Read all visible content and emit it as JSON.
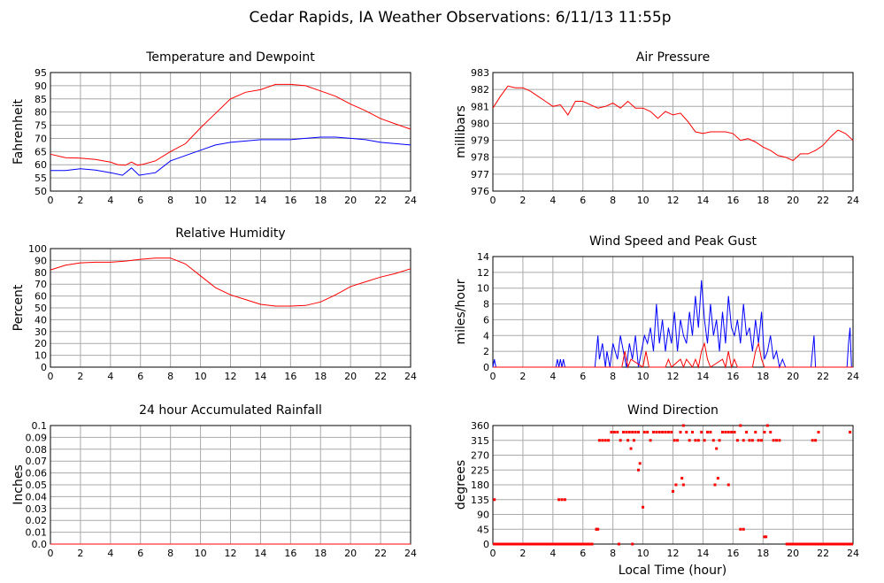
{
  "page": {
    "title": "Cedar Rapids, IA Weather Observations: 6/11/13 11:55p",
    "xlabel_bottom": "Local Time (hour)"
  },
  "colors": {
    "red": "#ff0000",
    "blue": "#0000ff",
    "grid": "#a9a9a9"
  },
  "chart_data": [
    {
      "id": "temp",
      "type": "line",
      "title": "Temperature and Dewpoint",
      "ylabel": "Fahrenheit",
      "xlim": [
        0,
        24
      ],
      "ylim": [
        50,
        95
      ],
      "xticks": [
        0,
        2,
        4,
        6,
        8,
        10,
        12,
        14,
        16,
        18,
        20,
        22,
        24
      ],
      "yticks": [
        50,
        55,
        60,
        65,
        70,
        75,
        80,
        85,
        90,
        95
      ],
      "series": [
        {
          "color": "#ff0000",
          "x": [
            0,
            1,
            2,
            3,
            4,
            4.5,
            5,
            5.4,
            5.8,
            6.2,
            7,
            8,
            9,
            10,
            11,
            12,
            13,
            14,
            15,
            16,
            17,
            18,
            19,
            20,
            21,
            22,
            23,
            24
          ],
          "y": [
            64,
            62.7,
            62.5,
            62,
            61,
            60,
            59.8,
            61,
            59.8,
            60.2,
            61.5,
            65,
            68,
            74,
            79.5,
            85,
            87.5,
            88.5,
            90.5,
            90.5,
            90,
            88,
            86,
            83,
            80.5,
            77.5,
            75.5,
            73.5
          ]
        },
        {
          "color": "#0000ff",
          "x": [
            0,
            1,
            2,
            3,
            4,
            4.8,
            5.4,
            5.9,
            7,
            8,
            9,
            10,
            11,
            12,
            13,
            14,
            15,
            16,
            17,
            18,
            19,
            20,
            21,
            22,
            23,
            24
          ],
          "y": [
            57.8,
            57.8,
            58.5,
            58,
            57,
            56,
            58.8,
            56,
            57,
            61.5,
            63.5,
            65.5,
            67.5,
            68.5,
            69,
            69.5,
            69.5,
            69.5,
            70,
            70.5,
            70.5,
            70,
            69.5,
            68.5,
            68,
            67.5
          ]
        }
      ]
    },
    {
      "id": "pressure",
      "type": "line",
      "title": "Air Pressure",
      "ylabel": "millibars",
      "xlim": [
        0,
        24
      ],
      "ylim": [
        976,
        983
      ],
      "xticks": [
        0,
        2,
        4,
        6,
        8,
        10,
        12,
        14,
        16,
        18,
        20,
        22,
        24
      ],
      "yticks": [
        976,
        977,
        978,
        979,
        980,
        981,
        982,
        983
      ],
      "series": [
        {
          "color": "#ff0000",
          "x": [
            0,
            0.5,
            1,
            1.5,
            2,
            2.5,
            3,
            3.5,
            4,
            4.5,
            5,
            5.5,
            6,
            6.5,
            7,
            7.5,
            8,
            8.5,
            9,
            9.5,
            10,
            10.5,
            11,
            11.5,
            12,
            12.5,
            13,
            13.5,
            14,
            14.5,
            15,
            15.5,
            16,
            16.5,
            17,
            17.5,
            18,
            18.5,
            19,
            19.5,
            20,
            20.5,
            21,
            21.5,
            22,
            22.5,
            23,
            23.5,
            24
          ],
          "y": [
            980.9,
            981.6,
            982.2,
            982.1,
            982.1,
            981.9,
            981.6,
            981.3,
            981.0,
            981.1,
            980.5,
            981.3,
            981.3,
            981.1,
            980.9,
            981.0,
            981.2,
            980.9,
            981.3,
            980.9,
            980.9,
            980.7,
            980.3,
            980.7,
            980.5,
            980.6,
            980.1,
            979.5,
            979.4,
            979.5,
            979.5,
            979.5,
            979.4,
            979.0,
            979.1,
            978.9,
            978.6,
            978.4,
            978.1,
            978.0,
            977.8,
            978.2,
            978.2,
            978.4,
            978.7,
            979.2,
            979.6,
            979.4,
            979.0
          ]
        }
      ]
    },
    {
      "id": "humidity",
      "type": "line",
      "title": "Relative Humidity",
      "ylabel": "Percent",
      "xlim": [
        0,
        24
      ],
      "ylim": [
        0,
        100
      ],
      "xticks": [
        0,
        2,
        4,
        6,
        8,
        10,
        12,
        14,
        16,
        18,
        20,
        22,
        24
      ],
      "yticks": [
        0,
        10,
        20,
        30,
        40,
        50,
        60,
        70,
        80,
        90,
        100
      ],
      "series": [
        {
          "color": "#ff0000",
          "x": [
            0,
            1,
            2,
            3,
            4,
            5,
            6,
            7,
            8,
            9,
            10,
            11,
            12,
            13,
            14,
            15,
            16,
            17,
            18,
            19,
            20,
            21,
            22,
            23,
            24
          ],
          "y": [
            82,
            86,
            88,
            88.5,
            88.5,
            89.5,
            91,
            92,
            92,
            87,
            77,
            67,
            61,
            57,
            53,
            51.5,
            51.5,
            52,
            55,
            61,
            68,
            72,
            76,
            79,
            83
          ]
        }
      ]
    },
    {
      "id": "wind",
      "type": "line",
      "title": "Wind Speed and Peak Gust",
      "ylabel": "miles/hour",
      "xlim": [
        0,
        24
      ],
      "ylim": [
        0,
        14
      ],
      "xticks": [
        0,
        2,
        4,
        6,
        8,
        10,
        12,
        14,
        16,
        18,
        20,
        22,
        24
      ],
      "yticks": [
        0,
        2,
        4,
        6,
        8,
        10,
        12,
        14
      ],
      "series": [
        {
          "color": "#0000ff",
          "x": [
            0,
            0.1,
            0.2,
            0.3,
            4.2,
            4.3,
            4.4,
            4.5,
            4.6,
            4.7,
            4.8,
            6.8,
            6.9,
            7.0,
            7.1,
            7.3,
            7.5,
            7.6,
            7.8,
            8.0,
            8.3,
            8.5,
            8.7,
            8.9,
            9.1,
            9.3,
            9.5,
            9.7,
            9.9,
            10.1,
            10.3,
            10.5,
            10.7,
            10.9,
            11.1,
            11.3,
            11.5,
            11.7,
            11.9,
            12.1,
            12.3,
            12.5,
            12.7,
            12.9,
            13.1,
            13.3,
            13.5,
            13.7,
            13.9,
            14.1,
            14.3,
            14.5,
            14.7,
            14.9,
            15.1,
            15.3,
            15.5,
            15.7,
            15.9,
            16.1,
            16.3,
            16.5,
            16.7,
            16.9,
            17.1,
            17.3,
            17.5,
            17.7,
            17.9,
            18.1,
            18.3,
            18.5,
            18.7,
            18.9,
            19.1,
            19.3,
            19.5,
            21.2,
            21.3,
            21.4,
            21.5,
            21.6,
            23.6,
            23.7,
            23.8,
            23.9,
            24.0
          ],
          "y": [
            0,
            1,
            0,
            0,
            0,
            1,
            0,
            1,
            0,
            1,
            0,
            0,
            2,
            4,
            1,
            3,
            0,
            2,
            0,
            3,
            1,
            4,
            2,
            0,
            3,
            1,
            4,
            0,
            2,
            4,
            3,
            5,
            2,
            8,
            3,
            6,
            2,
            5,
            3,
            7,
            2,
            6,
            4,
            3,
            7,
            4,
            9,
            5,
            11,
            6,
            3,
            8,
            4,
            6,
            2,
            7,
            3,
            9,
            5,
            4,
            6,
            3,
            8,
            4,
            5,
            2,
            6,
            3,
            7,
            1,
            2,
            4,
            1,
            2,
            0,
            1,
            0,
            0,
            2,
            4,
            0,
            0,
            0,
            3,
            5,
            0,
            0
          ]
        },
        {
          "color": "#ff0000",
          "x": [
            0,
            8.6,
            8.8,
            9.0,
            9.2,
            10.0,
            10.2,
            10.4,
            11.5,
            11.7,
            11.9,
            12.5,
            12.7,
            12.9,
            13.3,
            13.5,
            13.7,
            13.9,
            14.1,
            14.3,
            14.5,
            15.3,
            15.5,
            15.7,
            15.9,
            16.1,
            16.3,
            17.3,
            17.5,
            17.7,
            17.9,
            18.1,
            24
          ],
          "y": [
            0,
            0,
            2,
            0,
            1,
            0,
            2,
            0,
            0,
            1,
            0,
            1,
            0,
            1,
            0,
            1,
            0,
            2,
            3,
            1,
            0,
            1,
            0,
            2,
            0,
            1,
            0,
            0,
            2,
            3,
            1,
            0,
            0
          ]
        }
      ]
    },
    {
      "id": "rain",
      "type": "line",
      "title": "24 hour Accumulated Rainfall",
      "ylabel": "Inches",
      "xlim": [
        0,
        24
      ],
      "ylim": [
        0,
        0.1
      ],
      "xticks": [
        0,
        2,
        4,
        6,
        8,
        10,
        12,
        14,
        16,
        18,
        20,
        22,
        24
      ],
      "yticks": [
        0.0,
        0.01,
        0.02,
        0.03,
        0.04,
        0.05,
        0.06,
        0.07,
        0.08,
        0.09,
        0.1
      ],
      "ytick_labels": [
        "0.0",
        "0.01",
        "0.02",
        "0.03",
        "0.04",
        "0.05",
        "0.06",
        "0.07",
        "0.08",
        "0.09",
        "0.1"
      ],
      "series": [
        {
          "color": "#ff0000",
          "x": [
            0,
            24
          ],
          "y": [
            0,
            0
          ]
        }
      ]
    },
    {
      "id": "winddir",
      "type": "scatter",
      "title": "Wind Direction",
      "ylabel": "degrees",
      "xlim": [
        0,
        24
      ],
      "ylim": [
        0,
        360
      ],
      "xticks": [
        0,
        2,
        4,
        6,
        8,
        10,
        12,
        14,
        16,
        18,
        20,
        22,
        24
      ],
      "yticks": [
        0,
        45,
        90,
        135,
        180,
        225,
        270,
        315,
        360
      ],
      "series": [
        {
          "color": "#ff0000",
          "x": [
            0.1,
            4.4,
            4.6,
            4.8,
            6.9,
            7.1,
            7.3,
            7.5,
            7.7,
            7.9,
            8.1,
            8.3,
            8.5,
            8.7,
            8.9,
            9.1,
            9.3,
            9.5,
            9.7,
            9.0,
            9.2,
            9.4,
            10.1,
            10.3,
            10.5,
            10.7,
            10.9,
            11.1,
            11.3,
            11.5,
            11.7,
            11.9,
            12.1,
            12.3,
            12.5,
            12.7,
            12.9,
            13.1,
            13.3,
            13.5,
            13.7,
            13.9,
            14.1,
            14.3,
            14.5,
            14.7,
            14.9,
            15.1,
            15.3,
            15.5,
            15.7,
            15.9,
            16.1,
            16.3,
            16.5,
            16.7,
            16.9,
            17.1,
            17.3,
            17.5,
            17.7,
            17.9,
            18.1,
            18.3,
            18.5,
            18.7,
            18.9,
            19.1,
            21.3,
            21.5,
            21.7,
            23.8,
            12.0,
            12.2,
            12.6,
            12.7,
            14.8,
            15.0,
            15.7,
            10.0,
            6.9,
            7.0,
            16.5,
            16.7,
            18.1,
            18.2,
            9.7,
            9.8,
            8.4,
            9.3
          ],
          "y": [
            135,
            135,
            135,
            135,
            45,
            315,
            315,
            315,
            315,
            340,
            340,
            340,
            315,
            340,
            340,
            340,
            340,
            340,
            340,
            315,
            290,
            315,
            340,
            340,
            315,
            340,
            340,
            340,
            340,
            340,
            340,
            340,
            315,
            315,
            340,
            360,
            340,
            315,
            340,
            315,
            315,
            340,
            315,
            340,
            340,
            315,
            290,
            315,
            340,
            340,
            340,
            340,
            340,
            315,
            360,
            315,
            340,
            315,
            315,
            340,
            315,
            315,
            340,
            360,
            340,
            315,
            315,
            315,
            315,
            315,
            340,
            340,
            160,
            180,
            200,
            180,
            180,
            200,
            180,
            112,
            45,
            45,
            45,
            45,
            22,
            22,
            225,
            245,
            0,
            0
          ]
        },
        {
          "color": "#ff0000",
          "zero_line": true,
          "x": [
            0,
            6.7
          ],
          "y": [
            0,
            0
          ]
        },
        {
          "color": "#ff0000",
          "zero_line": true,
          "x": [
            19.5,
            24
          ],
          "y": [
            0,
            0
          ]
        }
      ]
    }
  ]
}
